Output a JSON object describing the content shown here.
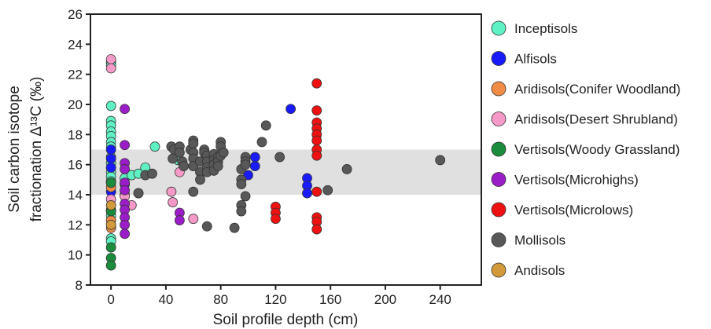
{
  "chart_data": {
    "type": "scatter",
    "xlabel": "Soil profile depth  (cm)",
    "ylabel_line1": "Soil carbon isotope",
    "ylabel_line2": "fractionation Δ¹³C  (‰)",
    "xlim": [
      -15,
      270
    ],
    "ylim": [
      8,
      26
    ],
    "xticks": [
      0,
      40,
      80,
      120,
      160,
      200,
      240
    ],
    "yticks": [
      8,
      10,
      12,
      14,
      16,
      18,
      20,
      22,
      24,
      26
    ],
    "band": {
      "y0": 14,
      "y1": 17,
      "color": "#e0e0e0"
    },
    "grid": false,
    "legend_position": "right",
    "series": [
      {
        "name": "Inceptisols",
        "color": "#5ff0c3",
        "points": [
          [
            0,
            22.8
          ],
          [
            0,
            22.6
          ],
          [
            0,
            19.9
          ],
          [
            0,
            18.9
          ],
          [
            0,
            18.6
          ],
          [
            0,
            18.2
          ],
          [
            0,
            17.9
          ],
          [
            0,
            17.5
          ],
          [
            0,
            17.2
          ],
          [
            0,
            16.5
          ],
          [
            0,
            16.1
          ],
          [
            0,
            15.8
          ],
          [
            0,
            15.5
          ],
          [
            0,
            15.2
          ],
          [
            0,
            14.9
          ],
          [
            0,
            12.9
          ],
          [
            0,
            12.6
          ],
          [
            0,
            11.1
          ],
          [
            0,
            10.9
          ],
          [
            10,
            15.1
          ],
          [
            15,
            15.3
          ],
          [
            20,
            15.4
          ],
          [
            25,
            15.8
          ],
          [
            32,
            17.2
          ],
          [
            49,
            16.3
          ]
        ]
      },
      {
        "name": "Alfisols",
        "color": "#1a1aff",
        "points": [
          [
            0,
            17.0
          ],
          [
            0,
            16.4
          ],
          [
            0,
            15.8
          ],
          [
            0,
            14.2
          ],
          [
            10,
            14.0
          ],
          [
            10,
            14.7
          ],
          [
            100,
            15.3
          ],
          [
            105,
            15.9
          ],
          [
            105,
            16.5
          ],
          [
            131,
            19.7
          ],
          [
            143,
            15.1
          ],
          [
            143,
            14.6
          ],
          [
            143,
            14.1
          ]
        ]
      },
      {
        "name": "Aridisols(Conifer Woodland)",
        "color": "#f08c46",
        "points": [
          [
            0,
            14.5
          ],
          [
            0,
            13.0
          ],
          [
            0,
            12.3
          ],
          [
            0,
            11.8
          ]
        ]
      },
      {
        "name": "Aridisols(Desert Shrubland)",
        "color": "#f59ac8",
        "points": [
          [
            0,
            23.0
          ],
          [
            0,
            22.4
          ],
          [
            0,
            14.8
          ],
          [
            0,
            13.7
          ],
          [
            10,
            13.9
          ],
          [
            15,
            13.3
          ],
          [
            20,
            14.1
          ],
          [
            44,
            14.2
          ],
          [
            45,
            13.5
          ],
          [
            50,
            15.5
          ],
          [
            60,
            12.4
          ]
        ]
      },
      {
        "name": "Vertisols(Woody Grassland)",
        "color": "#1b8c3c",
        "points": [
          [
            0,
            14.8
          ],
          [
            0,
            12.9
          ],
          [
            0,
            10.5
          ],
          [
            0,
            9.8
          ],
          [
            0,
            9.3
          ]
        ]
      },
      {
        "name": "Vertisols(Microhighs)",
        "color": "#9b1dc8",
        "points": [
          [
            10,
            19.7
          ],
          [
            10,
            17.3
          ],
          [
            10,
            16.1
          ],
          [
            10,
            15.7
          ],
          [
            10,
            14.8
          ],
          [
            10,
            14.3
          ],
          [
            10,
            13.4
          ],
          [
            10,
            13.0
          ],
          [
            10,
            12.5
          ],
          [
            10,
            12.0
          ],
          [
            10,
            11.4
          ],
          [
            50,
            12.8
          ],
          [
            50,
            12.3
          ]
        ]
      },
      {
        "name": "Vertisols(Microlows)",
        "color": "#ee1111",
        "points": [
          [
            120,
            13.2
          ],
          [
            120,
            12.8
          ],
          [
            120,
            12.4
          ],
          [
            150,
            21.4
          ],
          [
            150,
            19.6
          ],
          [
            150,
            18.8
          ],
          [
            150,
            18.4
          ],
          [
            150,
            18.0
          ],
          [
            150,
            17.6
          ],
          [
            150,
            17.0
          ],
          [
            150,
            16.6
          ],
          [
            150,
            14.2
          ],
          [
            150,
            12.5
          ],
          [
            150,
            12.2
          ],
          [
            150,
            11.7
          ]
        ]
      },
      {
        "name": "Mollisols",
        "color": "#585858",
        "points": [
          [
            20,
            14.1
          ],
          [
            25,
            15.3
          ],
          [
            30,
            15.4
          ],
          [
            44,
            17.2
          ],
          [
            46,
            17.0
          ],
          [
            45,
            16.4
          ],
          [
            50,
            17.2
          ],
          [
            50,
            16.8
          ],
          [
            52,
            16.2
          ],
          [
            53,
            15.9
          ],
          [
            58,
            17.0
          ],
          [
            60,
            17.6
          ],
          [
            60,
            17.4
          ],
          [
            60,
            16.8
          ],
          [
            60,
            16.4
          ],
          [
            60,
            15.9
          ],
          [
            60,
            14.2
          ],
          [
            65,
            16.2
          ],
          [
            65,
            15.5
          ],
          [
            65,
            15.0
          ],
          [
            68,
            17.0
          ],
          [
            68,
            16.8
          ],
          [
            70,
            16.6
          ],
          [
            70,
            16.2
          ],
          [
            70,
            15.8
          ],
          [
            70,
            15.5
          ],
          [
            70,
            11.9
          ],
          [
            75,
            16.7
          ],
          [
            75,
            16.3
          ],
          [
            75,
            16.0
          ],
          [
            75,
            15.6
          ],
          [
            78,
            16.5
          ],
          [
            78,
            16.2
          ],
          [
            78,
            15.9
          ],
          [
            80,
            17.5
          ],
          [
            80,
            17.2
          ],
          [
            80,
            16.6
          ],
          [
            82,
            16.8
          ],
          [
            90,
            11.8
          ],
          [
            95,
            15.7
          ],
          [
            95,
            15.0
          ],
          [
            95,
            14.7
          ],
          [
            95,
            13.3
          ],
          [
            95,
            12.9
          ],
          [
            98,
            16.5
          ],
          [
            98,
            16.2
          ],
          [
            98,
            13.9
          ],
          [
            98,
            16.0
          ],
          [
            110,
            17.5
          ],
          [
            113,
            18.6
          ],
          [
            123,
            16.5
          ],
          [
            158,
            14.3
          ],
          [
            172,
            15.7
          ],
          [
            240,
            16.3
          ]
        ]
      },
      {
        "name": "Andisols",
        "color": "#d29a3a",
        "points": [
          [
            0,
            13.3
          ],
          [
            0,
            12.0
          ]
        ]
      }
    ]
  }
}
